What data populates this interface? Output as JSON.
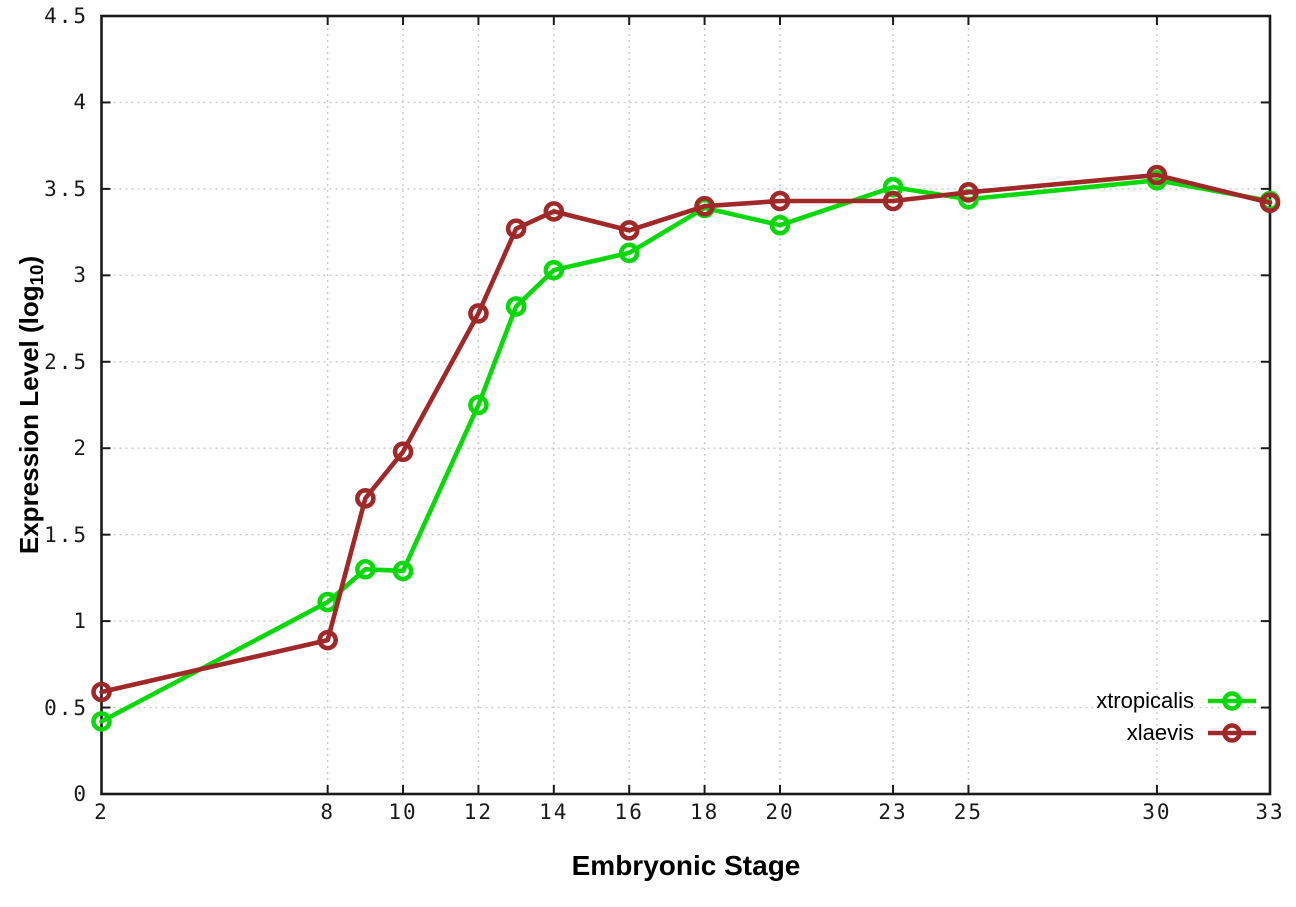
{
  "chart_data": {
    "type": "line",
    "title": "",
    "xlabel": "Embryonic Stage",
    "ylabel": {
      "text": "Expression Level (log",
      "subscript": "10",
      "suffix": ")"
    },
    "x": [
      2,
      8,
      9,
      10,
      12,
      13,
      14,
      16,
      18,
      20,
      23,
      25,
      30,
      33
    ],
    "series": [
      {
        "name": "xtropicalis",
        "color": "#0bd80b",
        "marker": "open-circle",
        "values": [
          0.42,
          1.11,
          1.3,
          1.29,
          2.25,
          2.82,
          3.03,
          3.13,
          3.39,
          3.29,
          3.51,
          3.44,
          3.55,
          3.43
        ]
      },
      {
        "name": "xlaevis",
        "color": "#a02828",
        "marker": "open-circle",
        "values": [
          0.59,
          0.89,
          1.71,
          1.98,
          2.78,
          3.27,
          3.37,
          3.26,
          3.4,
          3.43,
          3.43,
          3.48,
          3.58,
          3.42
        ]
      }
    ],
    "xlim": [
      2,
      33
    ],
    "ylim": [
      0,
      4.5
    ],
    "xticks": {
      "values": [
        2,
        8,
        10,
        12,
        14,
        16,
        18,
        20,
        23,
        25,
        30,
        33
      ],
      "labels": [
        "2",
        "8",
        "10",
        "12",
        "14",
        "16",
        "18",
        "20",
        "23",
        "25",
        "30",
        "33"
      ]
    },
    "yticks": {
      "values": [
        0,
        0.5,
        1,
        1.5,
        2,
        2.5,
        3,
        3.5,
        4,
        4.5
      ],
      "labels": [
        "0",
        "0.5",
        "1",
        "1.5",
        "2",
        "2.5",
        "3",
        "3.5",
        "4",
        "4.5"
      ]
    },
    "grid": true,
    "grid_style": "dotted",
    "grid_color": "#c8c8c8",
    "axis_color": "#1a1a1a",
    "background": "#ffffff",
    "legend_position": "bottom-right",
    "legend_entries": [
      "xtropicalis",
      "xlaevis"
    ]
  }
}
